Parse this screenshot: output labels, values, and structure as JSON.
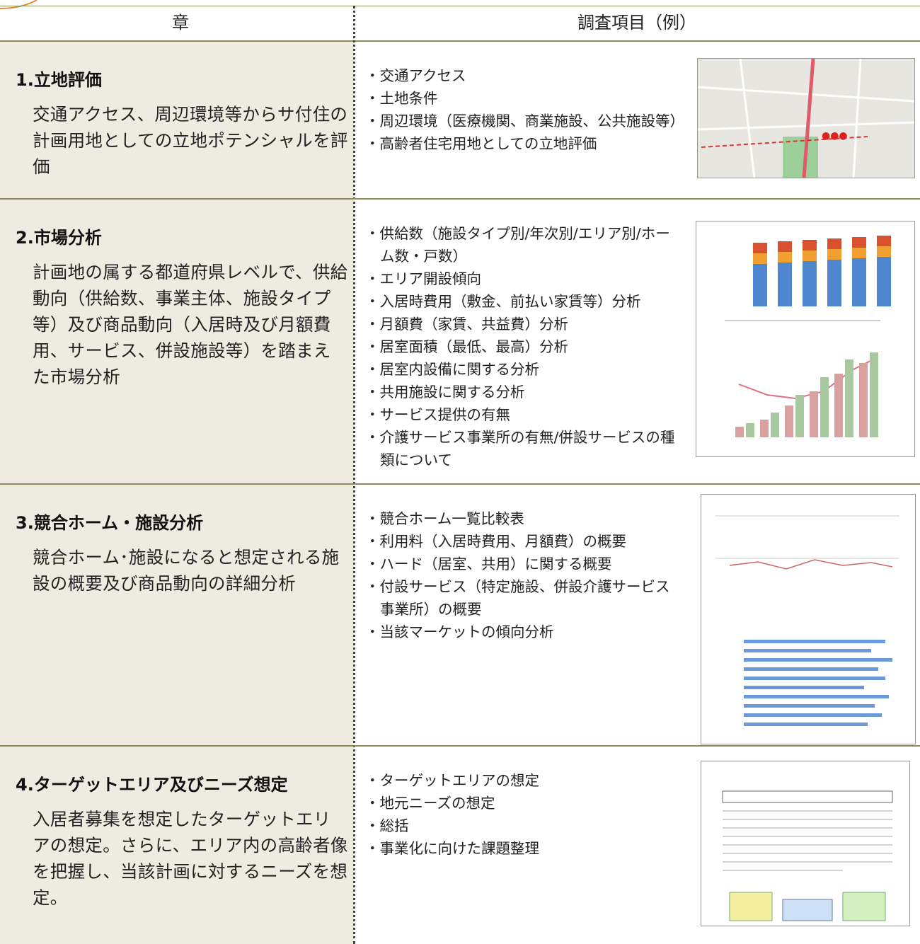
{
  "header": {
    "col1": "章",
    "col2": "調査項目（例）"
  },
  "rows": [
    {
      "title": "1.立地評価",
      "description": "交通アクセス、周辺環境等からサ付住の計画用地としての立地ポテンシャルを評価",
      "items": [
        "・交通アクセス",
        "・土地条件",
        "・周辺環境（医療機関、商業施設、公共施設等）",
        "・高齢者住宅用地としての立地評価"
      ]
    },
    {
      "title": "2.市場分析",
      "description": "計画地の属する都道府県レベルで、供給動向（供給数、事業主体、施設タイプ等）及び商品動向（入居時及び月額費用、サービス、併設施設等）を踏まえた市場分析",
      "items": [
        "・供給数（施設タイプ別/年次別/エリア別/ホーム数・戸数）",
        "・エリア開設傾向",
        "・入居時費用（敷金、前払い家賃等）分析",
        "・月額費（家賃、共益費）分析",
        "・居室面積（最低、最高）分析",
        "・居室内設備に関する分析",
        "・共用施設に関する分析",
        "・サービス提供の有無",
        "・介護サービス事業所の有無/併設サービスの種類について"
      ]
    },
    {
      "title": "3.競合ホーム・施設分析",
      "description": "競合ホーム･施設になると想定される施設の概要及び商品動向の詳細分析",
      "items": [
        "・競合ホーム一覧比較表",
        "・利用料（入居時費用、月額費）の概要",
        "・ハード（居室、共用）に関する概要",
        "・付設サービス（特定施設、併設介護サービス事業所）の概要",
        "・当該マーケットの傾向分析"
      ]
    },
    {
      "title": "4.ターゲットエリア及びニーズ想定",
      "description": "入居者募集を想定したターゲットエリアの想定。さらに、エリア内の高齢者像を把握し、当該計画に対するニーズを想定。",
      "items": [
        "・ターゲットエリアの想定",
        "・地元ニーズの想定",
        "・総括",
        "・事業化に向けた課題整理"
      ]
    }
  ]
}
